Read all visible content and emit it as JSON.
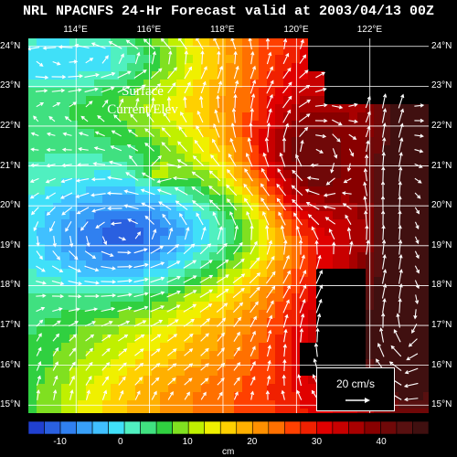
{
  "title": "NRL NPACNFS 24-Hr Forecast valid at 2003/04/13 00Z",
  "inset_label": {
    "line1": "Surface",
    "line2": "Current/Elev"
  },
  "lon_ticks": [
    "114°E",
    "116°E",
    "118°E",
    "120°E",
    "122°E"
  ],
  "lat_ticks": [
    "24°N",
    "23°N",
    "22°N",
    "21°N",
    "20°N",
    "19°N",
    "18°N",
    "17°N",
    "16°N",
    "15°N"
  ],
  "reference_vector": {
    "label": "20 cm/s"
  },
  "colorbar": {
    "tick_labels": [
      "-10",
      "0",
      "10",
      "20",
      "30",
      "40"
    ],
    "unit": "cm",
    "colors": [
      "#2040d0",
      "#2a60e0",
      "#3080f0",
      "#38a0f8",
      "#40c0ff",
      "#40e0f8",
      "#50f0c0",
      "#40e080",
      "#30d040",
      "#80e020",
      "#c0f000",
      "#f0f000",
      "#ffd000",
      "#ffb000",
      "#ff9000",
      "#ff7000",
      "#ff4000",
      "#f02000",
      "#e00000",
      "#c80000",
      "#a80000",
      "#880000",
      "#700808",
      "#581010",
      "#401010"
    ]
  },
  "chart_data": {
    "type": "heatmap",
    "title": "NRL NPACNFS 24-Hr Forecast valid at 2003/04/13 00Z",
    "variable": "Surface Current/Elev",
    "unit": "cm",
    "colorbar_range": [
      -15,
      47
    ],
    "lon_range": [
      112.7,
      123.6
    ],
    "lat_range": [
      14.8,
      24.2
    ],
    "reference_vector_speed": 20,
    "reference_vector_unit": "cm/s"
  }
}
